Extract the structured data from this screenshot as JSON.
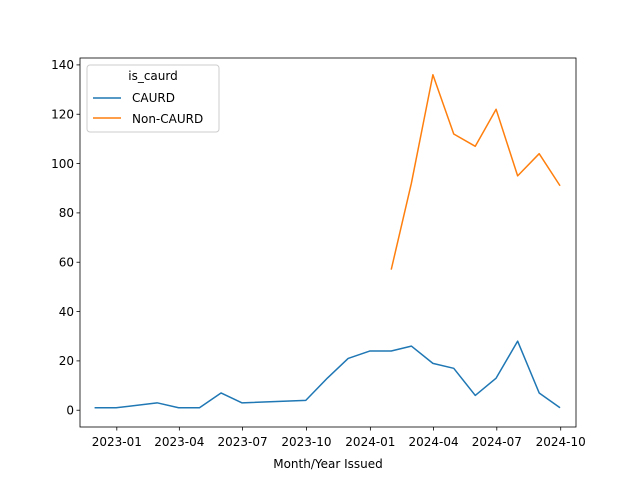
{
  "chart_data": {
    "type": "line",
    "title": "",
    "xlabel": "Month/Year Issued",
    "ylabel": "",
    "legend_title": "is_caurd",
    "legend_position": "top-left",
    "grid": false,
    "xlim": [
      "2022-11-09",
      "2024-10-23"
    ],
    "ylim": [
      -6.8,
      142.8
    ],
    "x_tick_labels": [
      "2023-01",
      "2023-04",
      "2023-07",
      "2023-10",
      "2024-01",
      "2024-04",
      "2024-07",
      "2024-10"
    ],
    "y_tick_labels": [
      "0",
      "20",
      "40",
      "60",
      "80",
      "100",
      "120",
      "140"
    ],
    "series": [
      {
        "name": "CAURD",
        "color": "#1f77b4",
        "x": [
          "2022-11-30",
          "2022-12-31",
          "2023-02-28",
          "2023-03-31",
          "2023-04-30",
          "2023-05-31",
          "2023-06-30",
          "2023-09-30",
          "2023-10-31",
          "2023-11-30",
          "2023-12-31",
          "2024-01-31",
          "2024-02-29",
          "2024-03-31",
          "2024-04-30",
          "2024-05-31",
          "2024-06-30",
          "2024-07-31",
          "2024-08-31",
          "2024-09-30"
        ],
        "y": [
          1,
          1,
          3,
          1,
          1,
          7,
          3,
          4,
          13,
          21,
          24,
          24,
          26,
          19,
          17,
          6,
          13,
          28,
          7,
          1
        ]
      },
      {
        "name": "Non-CAURD",
        "color": "#ff7f0e",
        "x": [
          "2024-01-31",
          "2024-02-29",
          "2024-03-31",
          "2024-04-30",
          "2024-05-31",
          "2024-06-30",
          "2024-07-31",
          "2024-08-31",
          "2024-09-30"
        ],
        "y": [
          57,
          92,
          136,
          112,
          107,
          122,
          95,
          104,
          91
        ]
      }
    ]
  }
}
